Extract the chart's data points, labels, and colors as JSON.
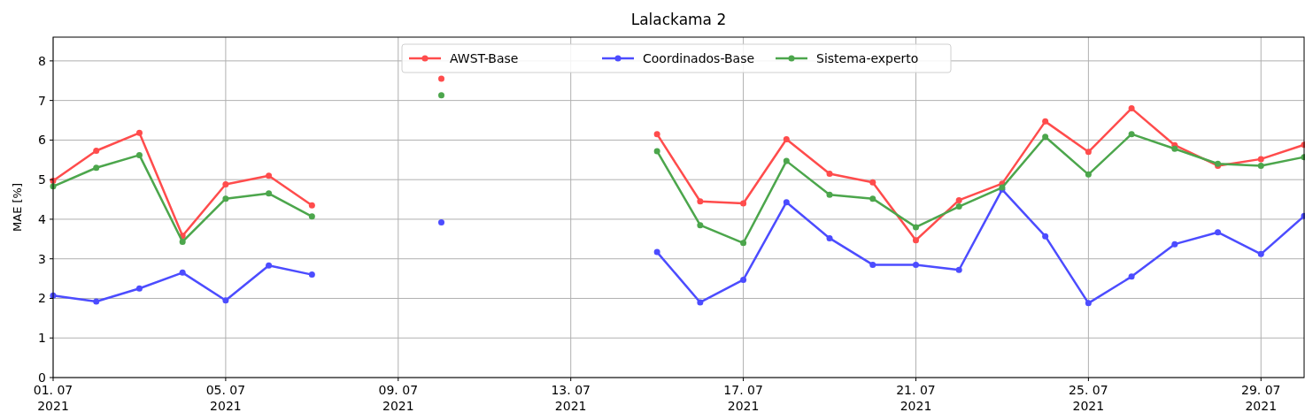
{
  "chart_data": {
    "type": "line",
    "title": "Lalackama 2",
    "ylabel": "MAE [%]",
    "x": [
      "2021-07-01",
      "2021-07-02",
      "2021-07-03",
      "2021-07-04",
      "2021-07-05",
      "2021-07-06",
      "2021-07-07",
      "2021-07-08",
      "2021-07-09",
      "2021-07-10",
      "2021-07-11",
      "2021-07-12",
      "2021-07-13",
      "2021-07-14",
      "2021-07-15",
      "2021-07-16",
      "2021-07-17",
      "2021-07-18",
      "2021-07-19",
      "2021-07-20",
      "2021-07-21",
      "2021-07-22",
      "2021-07-23",
      "2021-07-24",
      "2021-07-25",
      "2021-07-26",
      "2021-07-27",
      "2021-07-28",
      "2021-07-29",
      "2021-07-30"
    ],
    "series": [
      {
        "name": "AWST-Base",
        "color": "#ff4c4c",
        "values": [
          4.97,
          5.73,
          6.18,
          3.58,
          4.88,
          5.1,
          4.35,
          null,
          null,
          7.55,
          null,
          null,
          null,
          null,
          6.15,
          4.45,
          4.4,
          6.02,
          5.15,
          4.93,
          3.47,
          4.48,
          4.9,
          6.47,
          5.7,
          6.8,
          5.87,
          5.35,
          5.52,
          5.88
        ]
      },
      {
        "name": "Coordinados-Base",
        "color": "#4c4cff",
        "values": [
          2.07,
          1.92,
          2.25,
          2.65,
          1.95,
          2.83,
          2.6,
          null,
          null,
          3.92,
          null,
          null,
          null,
          null,
          3.17,
          1.9,
          2.47,
          4.43,
          3.52,
          2.85,
          2.85,
          2.72,
          4.75,
          3.57,
          1.88,
          2.55,
          3.37,
          3.67,
          3.12,
          4.08
        ]
      },
      {
        "name": "Sistema-experto",
        "color": "#4ca64c",
        "values": [
          4.83,
          5.3,
          5.62,
          3.43,
          4.52,
          4.65,
          4.07,
          null,
          null,
          7.13,
          null,
          null,
          null,
          null,
          5.72,
          3.85,
          3.4,
          5.47,
          4.62,
          4.52,
          3.8,
          4.32,
          4.8,
          6.08,
          5.13,
          6.15,
          5.78,
          5.4,
          5.35,
          5.57
        ]
      }
    ],
    "xlim": [
      "2021-07-01",
      "2021-07-30"
    ],
    "xticks": [
      {
        "value": "2021-07-01",
        "label": "01. 07\n2021"
      },
      {
        "value": "2021-07-05",
        "label": "05. 07\n2021"
      },
      {
        "value": "2021-07-09",
        "label": "09. 07\n2021"
      },
      {
        "value": "2021-07-13",
        "label": "13. 07\n2021"
      },
      {
        "value": "2021-07-17",
        "label": "17. 07\n2021"
      },
      {
        "value": "2021-07-21",
        "label": "21. 07\n2021"
      },
      {
        "value": "2021-07-25",
        "label": "25. 07\n2021"
      },
      {
        "value": "2021-07-29",
        "label": "29. 07\n2021"
      }
    ],
    "ylim": [
      0,
      8.6
    ],
    "yticks": [
      0,
      1,
      2,
      3,
      4,
      5,
      6,
      7,
      8
    ],
    "grid": true,
    "legend": "top",
    "marker": "circle",
    "line_style": "solid"
  }
}
